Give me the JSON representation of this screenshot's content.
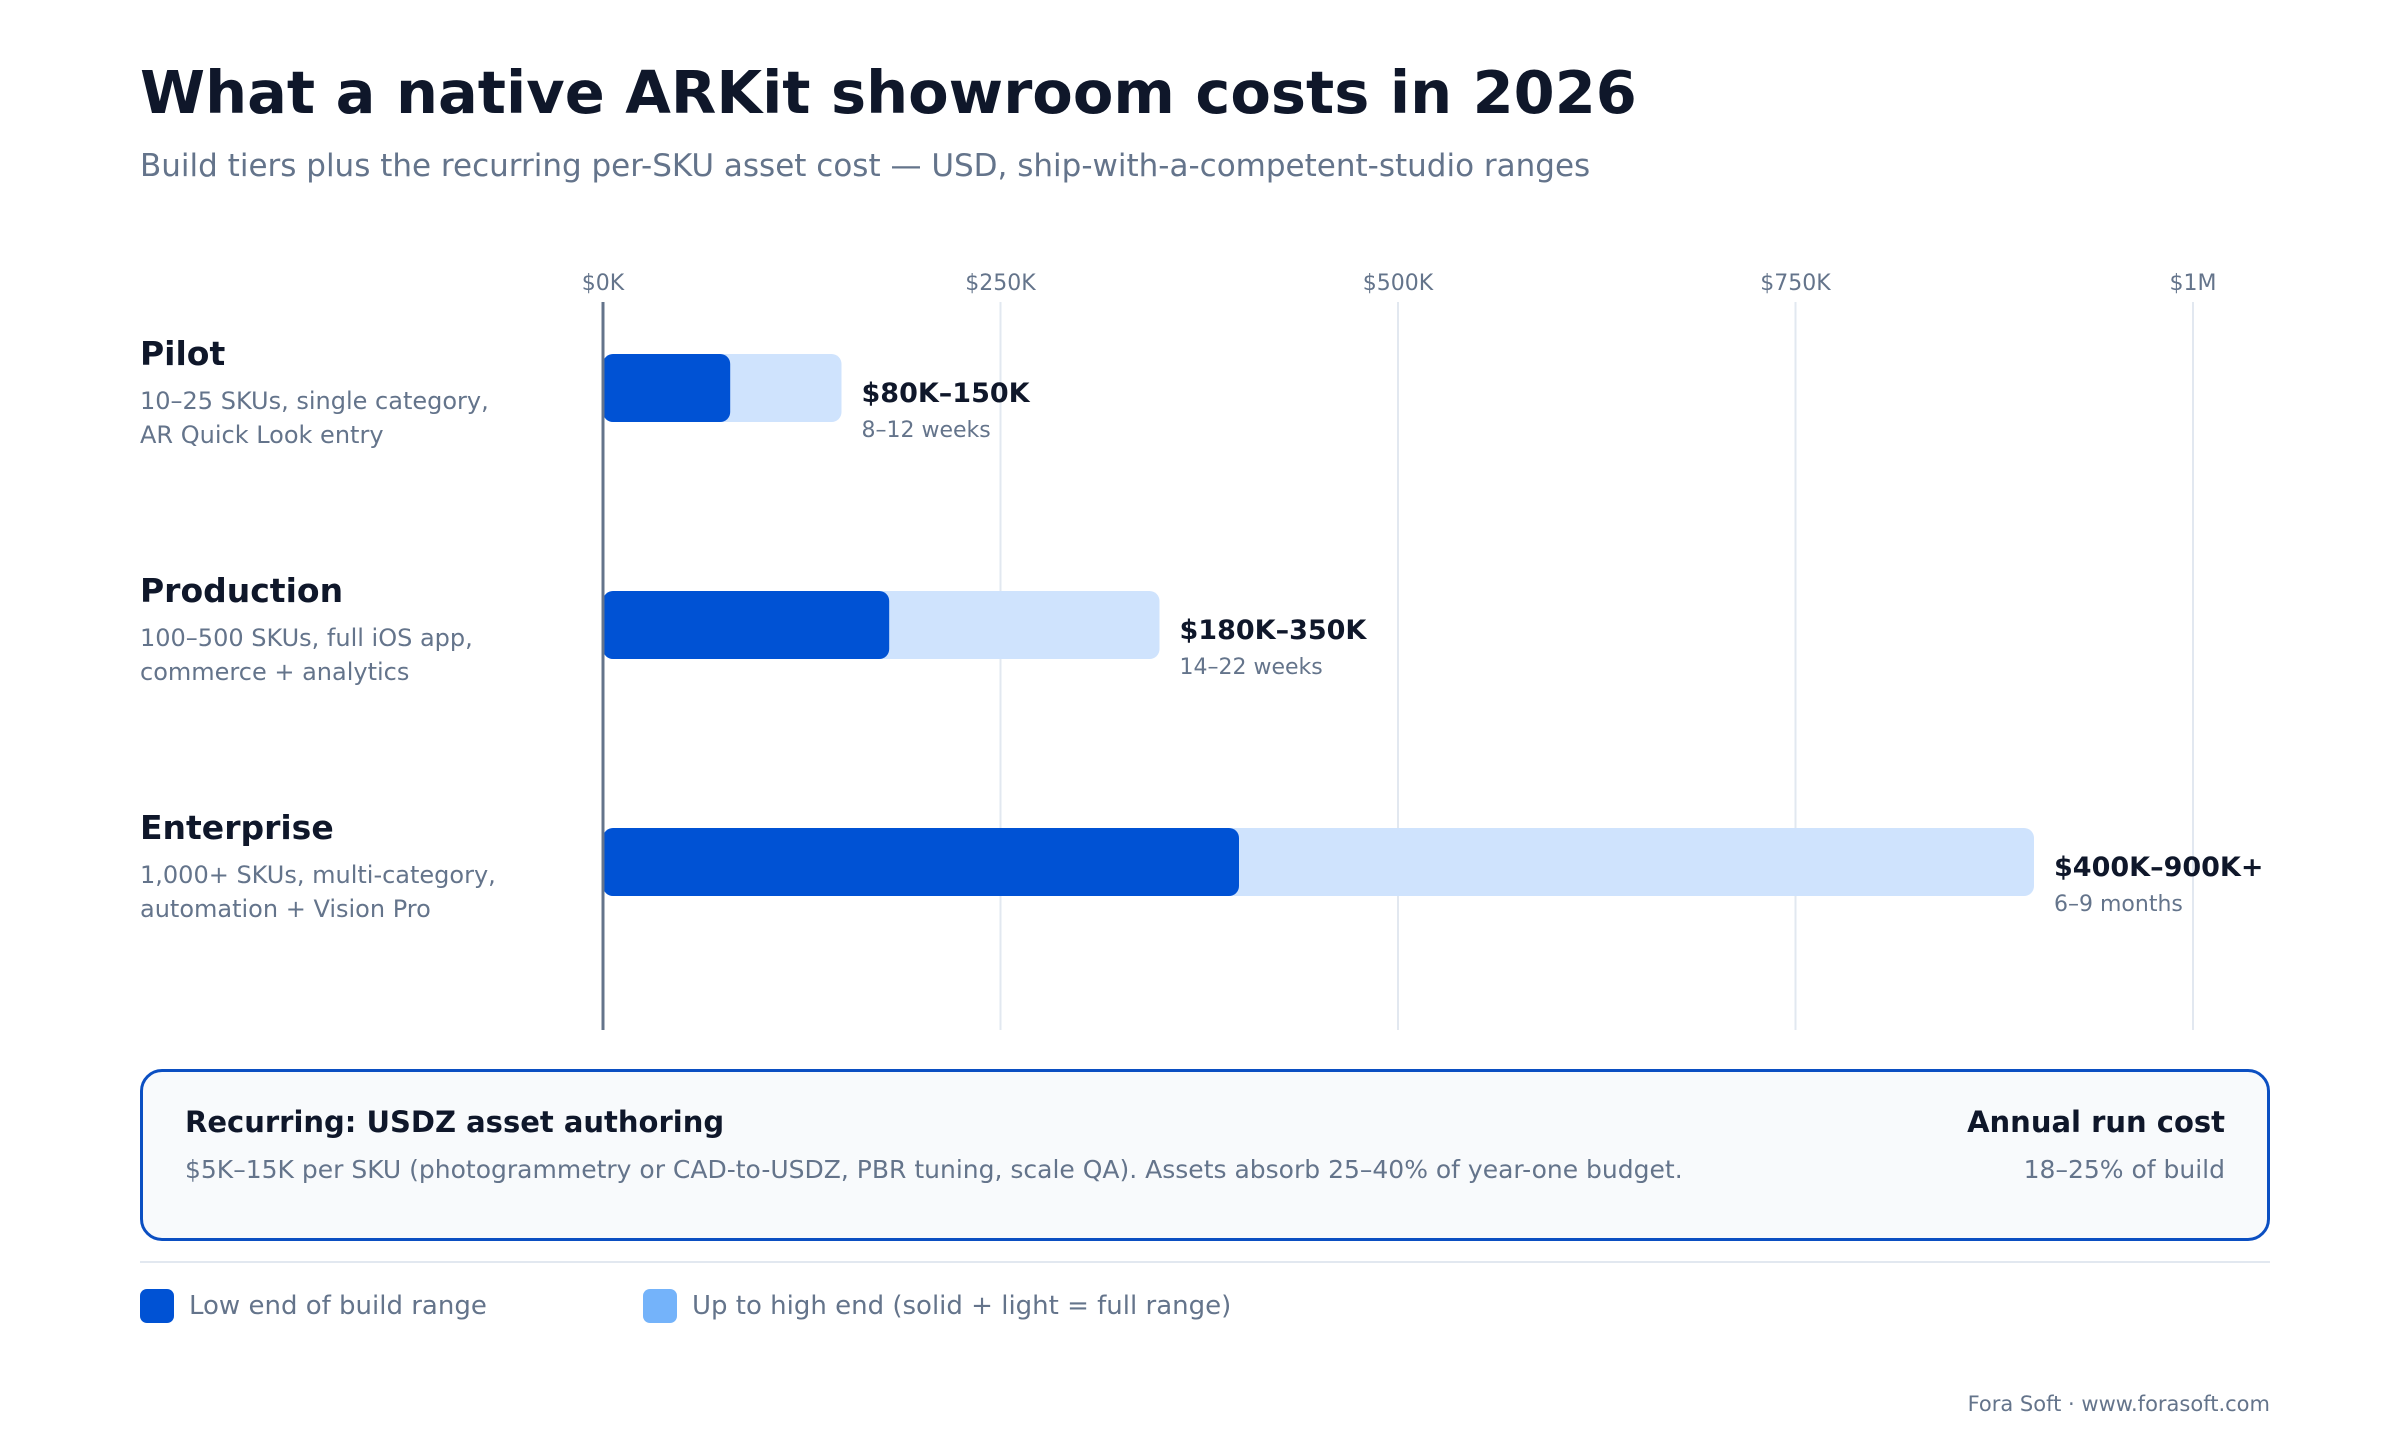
{
  "title": "What a native ARKit showroom costs in 2026",
  "subtitle": "Build tiers plus the recurring per-SKU asset cost — USD, ship-with-a-competent-studio ranges",
  "chart_data": {
    "type": "bar",
    "orientation": "horizontal",
    "stacked_range": true,
    "x_ticks": [
      "$0K",
      "$250K",
      "$500K",
      "$750K",
      "$1M"
    ],
    "xlim": [
      0,
      1000
    ],
    "x_unit": "USD thousands",
    "grid": true,
    "categories": [
      "Pilot",
      "Production",
      "Enterprise"
    ],
    "tiers": [
      {
        "name": "Pilot",
        "desc_lines": [
          "10–25 SKUs, single category,",
          "AR Quick Look entry"
        ],
        "low": 80,
        "high": 150,
        "value_label": "$80K–150K",
        "duration": "8–12 weeks"
      },
      {
        "name": "Production",
        "desc_lines": [
          "100–500 SKUs, full iOS app,",
          "commerce + analytics"
        ],
        "low": 180,
        "high": 350,
        "value_label": "$180K–350K",
        "duration": "14–22 weeks"
      },
      {
        "name": "Enterprise",
        "desc_lines": [
          "1,000+ SKUs, multi-category,",
          "automation + Vision Pro"
        ],
        "low": 400,
        "high": 900,
        "value_label": "$400K–900K+",
        "duration": "6–9 months"
      }
    ],
    "colors": {
      "low": "#0052d4",
      "high": "#cfe3fd",
      "legend_high": "#74b3fa",
      "grid": "#e2e8f0",
      "axis": "#64748b"
    }
  },
  "recurring": {
    "title": "Recurring: USDZ asset authoring",
    "text": "$5K–15K per SKU (photogrammetry or CAD-to-USDZ, PBR tuning, scale QA). Assets absorb 25–40% of year-one budget.",
    "right_title": "Annual run cost",
    "right_text": "18–25% of build"
  },
  "legend": [
    {
      "label": "Low end of build range",
      "color": "#0052d4"
    },
    {
      "label": "Up to high end (solid + light = full range)",
      "color": "#74b3fa"
    }
  ],
  "credit": "Fora Soft · www.forasoft.com"
}
